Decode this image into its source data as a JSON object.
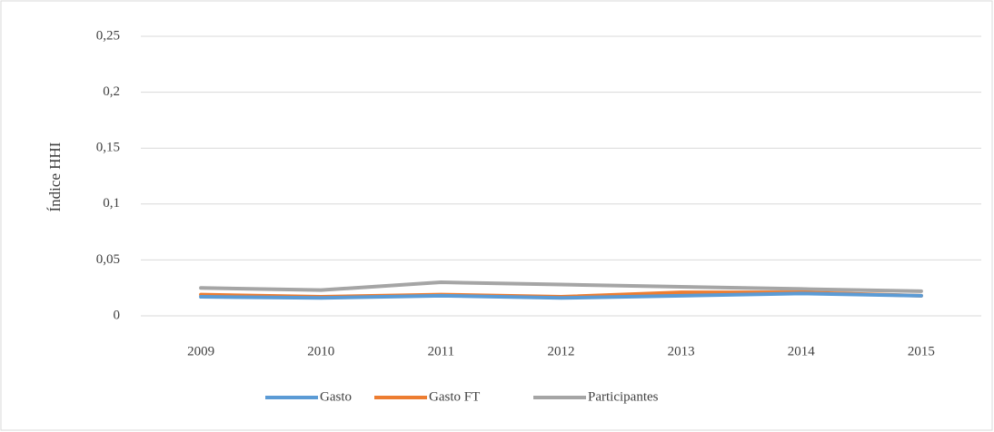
{
  "chart_data": {
    "type": "line",
    "y_label": "Índice HHI",
    "categories": [
      "2009",
      "2010",
      "2011",
      "2012",
      "2013",
      "2014",
      "2015"
    ],
    "series": [
      {
        "name": "Gasto",
        "color": "#5b9bd5",
        "values": [
          0.017,
          0.016,
          0.018,
          0.016,
          0.018,
          0.02,
          0.018
        ]
      },
      {
        "name": "Gasto FT",
        "color": "#ed7d31",
        "values": [
          0.019,
          0.017,
          0.019,
          0.017,
          0.021,
          0.021,
          0.018
        ]
      },
      {
        "name": "Participantes",
        "color": "#a5a5a5",
        "values": [
          0.025,
          0.023,
          0.03,
          0.028,
          0.026,
          0.024,
          0.022
        ]
      }
    ],
    "ylim": [
      0,
      0.25
    ],
    "yticks": [
      0,
      {
        "value": 0.05,
        "label": "0,05"
      },
      {
        "value": 0.1,
        "label": "0,1"
      },
      {
        "value": 0.15,
        "label": "0,15"
      },
      {
        "value": 0.2,
        "label": "0,2"
      },
      {
        "value": 0.25,
        "label": "0,25"
      }
    ],
    "grid": true,
    "legend": "bottom"
  }
}
